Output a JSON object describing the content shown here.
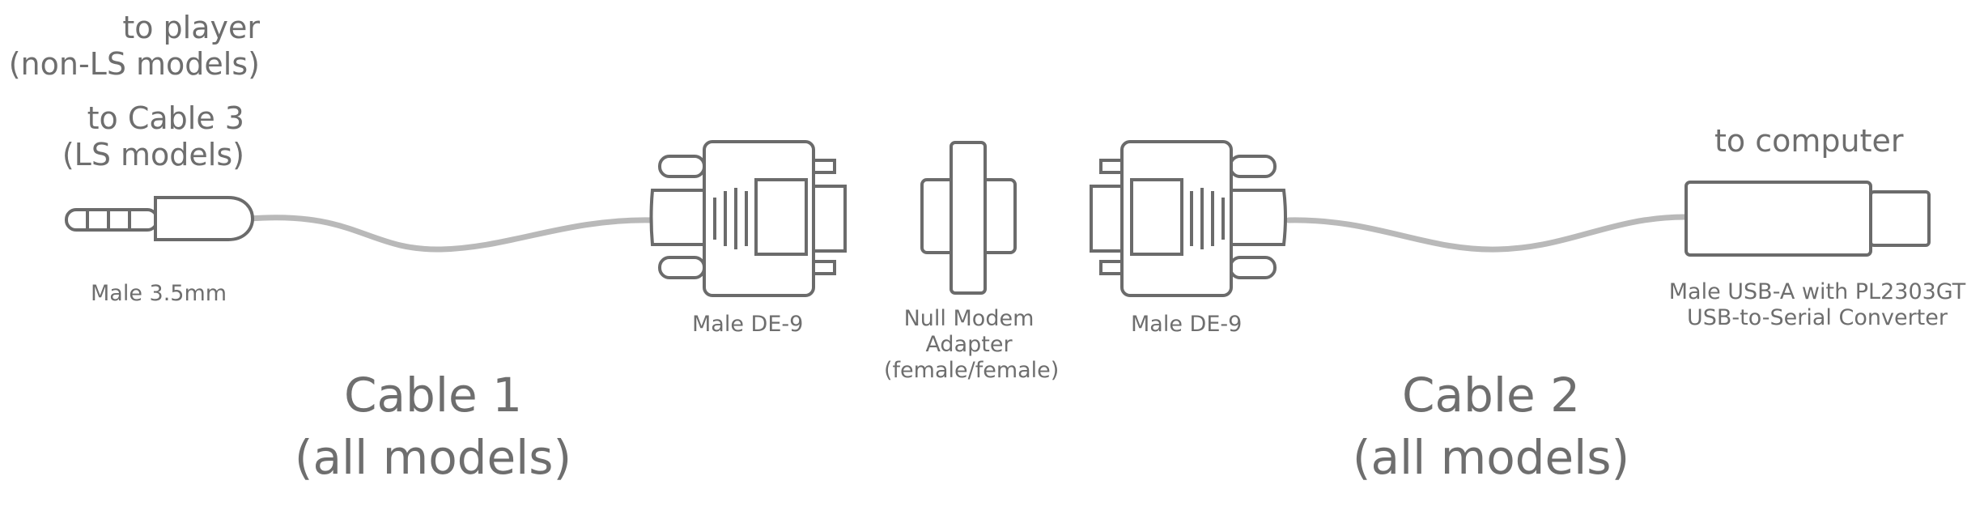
{
  "connector_labels": {
    "to_player": [
      "to player",
      "(non-LS models)"
    ],
    "to_cable3": [
      "to Cable 3",
      "(LS models)"
    ],
    "male_35mm": "Male 3.5mm",
    "male_de9_left": "Male DE-9",
    "null_modem": [
      "Null Modem",
      "Adapter",
      "(female/female)"
    ],
    "male_de9_right": "Male DE-9",
    "to_computer": "to computer",
    "usb_a": [
      "Male USB-A with PL2303GT",
      "USB-to-Serial Converter"
    ]
  },
  "cables": {
    "cable1": [
      "Cable 1",
      "(all models)"
    ],
    "cable2": [
      "Cable 2",
      "(all models)"
    ]
  },
  "colors": {
    "outline": "#6b6b6b",
    "wire": "#b9b9b9",
    "text": "#6e6e6e",
    "background": "#ffffff"
  }
}
